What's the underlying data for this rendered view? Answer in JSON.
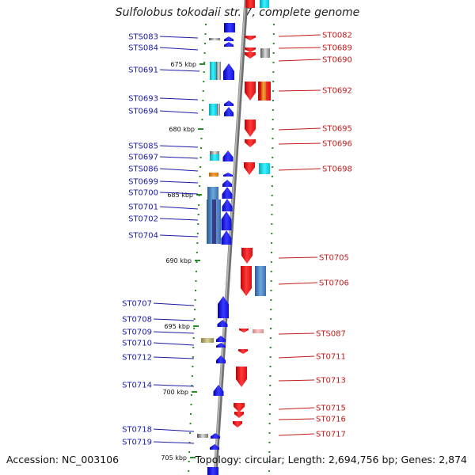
{
  "title": "Sulfolobus tokodaii str. 7, complete genome",
  "footer": {
    "accession": "Accession: NC_003106",
    "topology": "Topology: circular; Length: 2,694,756 bp; Genes: 2,874"
  },
  "colors": {
    "forward": "#1a1aa8",
    "reverse": "#c41a1a",
    "axis": "#8a8a8a",
    "tick": "#2a8a2a"
  },
  "kbp_marks": [
    "675 kbp",
    "680 kbp",
    "685 kbp",
    "690 kbp",
    "695 kbp",
    "700 kbp",
    "705 kbp"
  ],
  "left_labels": [
    "STS083",
    "STS084",
    "ST0691",
    "ST0693",
    "ST0694",
    "STS085",
    "ST0697",
    "STS086",
    "ST0699",
    "ST0700",
    "ST0701",
    "ST0702",
    "ST0704",
    "ST0707",
    "ST0708",
    "ST0709",
    "ST0710",
    "ST0712",
    "ST0714",
    "ST0718",
    "ST0719"
  ],
  "right_labels": [
    "ST0082",
    "ST0689",
    "ST0690",
    "ST0692",
    "ST0695",
    "ST0696",
    "ST0698",
    "ST0705",
    "ST0706",
    "STS087",
    "ST0711",
    "ST0713",
    "ST0715",
    "ST0716",
    "ST0717"
  ]
}
